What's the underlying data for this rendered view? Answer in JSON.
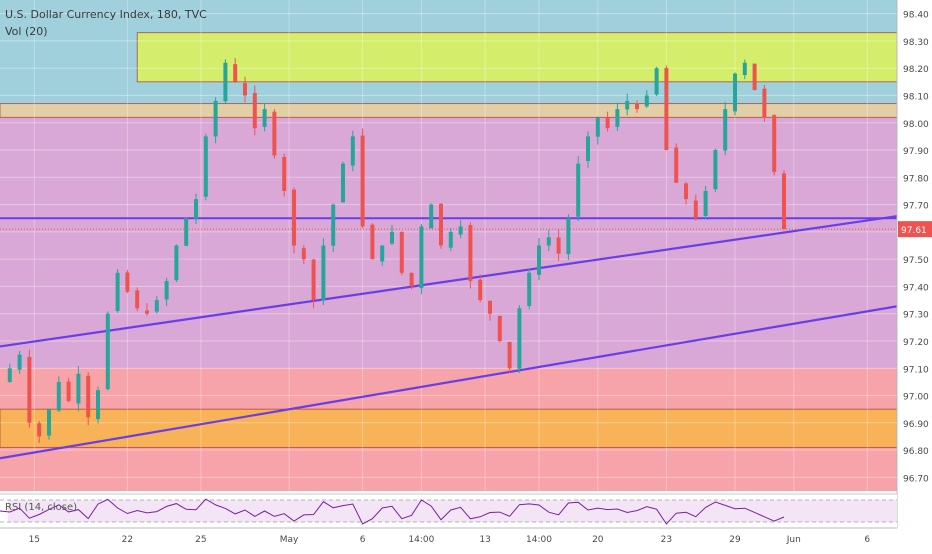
{
  "header": {
    "title": "U.S. Dollar Currency Index, 180, TVC",
    "volume": "Vol (20)"
  },
  "price_tag": {
    "value": "97.61",
    "color": "#ef5350"
  },
  "rsi": {
    "label": "RSI (14, close)",
    "color": "#7b1fa2"
  },
  "colors": {
    "bull": "#26a69a",
    "bear": "#ef5350",
    "zone_top": "#9fd0dc",
    "zone_mid": "#d9a8d6",
    "zone_low": "#f6a4a9",
    "resistance_box": "#d4ee6c",
    "support_box": "#f8b257",
    "thin_band": "#e2cfa6",
    "trendline": "#6a3ee6"
  },
  "chart_data": {
    "type": "candlestick",
    "title": "U.S. Dollar Currency Index, 180, TVC",
    "x_tick_labels": [
      "15",
      "22",
      "25",
      "May",
      "6",
      "14:00",
      "13",
      "14:00",
      "20",
      "23",
      "29",
      "Jun",
      "6"
    ],
    "y_tick_labels": [
      "98.40",
      "98.30",
      "98.20",
      "98.10",
      "98.00",
      "97.90",
      "97.80",
      "97.70",
      "97.60",
      "97.50",
      "97.40",
      "97.30",
      "97.20",
      "97.10",
      "97.00",
      "96.90",
      "96.80",
      "96.70"
    ],
    "y_ticks": [
      98.4,
      98.3,
      98.2,
      98.1,
      98.0,
      97.9,
      97.8,
      97.7,
      97.6,
      97.5,
      97.4,
      97.3,
      97.2,
      97.1,
      97.0,
      96.9,
      96.8,
      96.7
    ],
    "ylim": [
      96.65,
      98.45
    ],
    "last_price": 97.61,
    "close_path": [
      [
        0,
        97.05
      ],
      [
        2,
        97.15
      ],
      [
        3,
        96.9
      ],
      [
        4,
        96.85
      ],
      [
        5,
        96.95
      ],
      [
        6,
        97.05
      ],
      [
        7,
        96.98
      ],
      [
        8,
        97.08
      ],
      [
        9,
        96.92
      ],
      [
        10,
        97.02
      ],
      [
        11,
        97.3
      ],
      [
        12,
        97.45
      ],
      [
        13,
        97.38
      ],
      [
        14,
        97.32
      ],
      [
        15,
        97.3
      ],
      [
        16,
        97.35
      ],
      [
        17,
        97.42
      ],
      [
        18,
        97.55
      ],
      [
        19,
        97.65
      ],
      [
        20,
        97.72
      ],
      [
        21,
        97.95
      ],
      [
        22,
        98.08
      ],
      [
        23,
        98.22
      ],
      [
        24,
        98.15
      ],
      [
        25,
        98.1
      ],
      [
        26,
        97.98
      ],
      [
        27,
        98.05
      ],
      [
        28,
        97.88
      ],
      [
        29,
        97.75
      ],
      [
        30,
        97.55
      ],
      [
        31,
        97.5
      ],
      [
        32,
        97.35
      ],
      [
        33,
        97.55
      ],
      [
        34,
        97.7
      ],
      [
        35,
        97.85
      ],
      [
        36,
        97.95
      ],
      [
        37,
        97.62
      ],
      [
        38,
        97.5
      ],
      [
        39,
        97.55
      ],
      [
        40,
        97.6
      ],
      [
        41,
        97.45
      ],
      [
        42,
        97.4
      ],
      [
        43,
        97.62
      ],
      [
        44,
        97.7
      ],
      [
        45,
        97.55
      ],
      [
        46,
        97.6
      ],
      [
        47,
        97.62
      ],
      [
        48,
        97.42
      ],
      [
        49,
        97.35
      ],
      [
        50,
        97.3
      ],
      [
        51,
        97.2
      ],
      [
        52,
        97.1
      ],
      [
        53,
        97.32
      ],
      [
        54,
        97.45
      ],
      [
        55,
        97.55
      ],
      [
        56,
        97.58
      ],
      [
        57,
        97.52
      ],
      [
        58,
        97.65
      ],
      [
        59,
        97.85
      ],
      [
        60,
        97.95
      ],
      [
        61,
        98.02
      ],
      [
        62,
        97.98
      ],
      [
        63,
        98.05
      ],
      [
        64,
        98.08
      ],
      [
        65,
        98.05
      ],
      [
        66,
        98.1
      ],
      [
        67,
        98.2
      ],
      [
        68,
        97.9
      ],
      [
        69,
        97.78
      ],
      [
        70,
        97.72
      ],
      [
        71,
        97.65
      ],
      [
        72,
        97.75
      ],
      [
        73,
        97.9
      ],
      [
        74,
        98.05
      ],
      [
        75,
        98.18
      ],
      [
        76,
        98.22
      ],
      [
        77,
        98.12
      ],
      [
        78,
        98.02
      ],
      [
        79,
        97.82
      ],
      [
        80,
        97.61
      ]
    ],
    "horizontal_zones": [
      {
        "name": "resistance-box",
        "y_top": 98.33,
        "y_bottom": 98.15,
        "x_start": 14
      },
      {
        "name": "thin-band",
        "y_top": 98.07,
        "y_bottom": 98.02
      },
      {
        "name": "upper-zone",
        "y_top": 98.45,
        "y_bottom": 98.07
      },
      {
        "name": "middle-zone",
        "y_top": 98.07,
        "y_bottom": 97.1
      },
      {
        "name": "lower-zone",
        "y_top": 97.1,
        "y_bottom": 96.65
      },
      {
        "name": "support-box",
        "y_top": 96.95,
        "y_bottom": 96.81
      }
    ],
    "horizontal_lines": [
      97.65
    ],
    "trendlines": [
      {
        "from": [
          0,
          97.18
        ],
        "to": [
          92,
          97.66
        ]
      },
      {
        "from": [
          0,
          96.77
        ],
        "to": [
          92,
          97.33
        ]
      }
    ],
    "grid": true
  }
}
